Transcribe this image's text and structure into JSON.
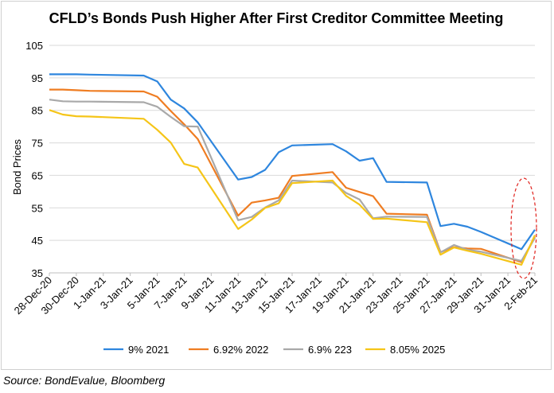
{
  "source": "Source: BondEvalue, Bloomberg",
  "chart_data": {
    "type": "line",
    "title": "CFLD’s Bonds Push Higher After First Creditor Committee Meeting",
    "xlabel": "",
    "ylabel": "Bond Prices",
    "ylim": [
      35,
      105
    ],
    "yticks": [
      35,
      45,
      55,
      65,
      75,
      85,
      95,
      105
    ],
    "grid": "horizontal",
    "legend_position": "bottom",
    "annotation": "dashed red ellipse highlighting the final rise",
    "annotation_color": "#e0201b",
    "x_tick_labels": [
      "28-Dec-20",
      "30-Dec-20",
      "1-Jan-21",
      "3-Jan-21",
      "5-Jan-21",
      "7-Jan-21",
      "9-Jan-21",
      "11-Jan-21",
      "13-Jan-21",
      "15-Jan-21",
      "17-Jan-21",
      "19-Jan-21",
      "21-Jan-21",
      "23-Jan-21",
      "25-Jan-21",
      "27-Jan-21",
      "29-Jan-21",
      "31-Jan-21",
      "2-Feb-21"
    ],
    "series": [
      {
        "name": "9% 2021",
        "color": "#2e86de",
        "x": [
          "28-Dec-20",
          "29-Dec-20",
          "30-Dec-20",
          "31-Dec-20",
          "4-Jan-21",
          "5-Jan-21",
          "6-Jan-21",
          "7-Jan-21",
          "8-Jan-21",
          "11-Jan-21",
          "12-Jan-21",
          "13-Jan-21",
          "14-Jan-21",
          "15-Jan-21",
          "18-Jan-21",
          "19-Jan-21",
          "20-Jan-21",
          "21-Jan-21",
          "22-Jan-21",
          "25-Jan-21",
          "26-Jan-21",
          "27-Jan-21",
          "28-Jan-21",
          "29-Jan-21",
          "1-Feb-21",
          "2-Feb-21"
        ],
        "values": [
          96.1,
          96.1,
          96.1,
          96.0,
          95.7,
          93.9,
          88.3,
          85.6,
          81.3,
          63.7,
          64.5,
          66.7,
          72.1,
          74.2,
          74.6,
          72.4,
          69.5,
          70.3,
          63.0,
          62.8,
          49.4,
          50.1,
          49.2,
          47.6,
          42.3,
          48.3
        ]
      },
      {
        "name": "6.92% 2022",
        "color": "#ef7d22",
        "x": [
          "28-Dec-20",
          "29-Dec-20",
          "30-Dec-20",
          "31-Dec-20",
          "4-Jan-21",
          "5-Jan-21",
          "6-Jan-21",
          "7-Jan-21",
          "8-Jan-21",
          "11-Jan-21",
          "12-Jan-21",
          "13-Jan-21",
          "14-Jan-21",
          "15-Jan-21",
          "18-Jan-21",
          "19-Jan-21",
          "20-Jan-21",
          "21-Jan-21",
          "22-Jan-21",
          "25-Jan-21",
          "26-Jan-21",
          "27-Jan-21",
          "28-Jan-21",
          "29-Jan-21",
          "1-Feb-21",
          "2-Feb-21"
        ],
        "values": [
          91.4,
          91.4,
          91.2,
          91.0,
          90.8,
          89.2,
          84.8,
          80.7,
          76.2,
          52.6,
          56.6,
          57.3,
          58.1,
          64.8,
          66.0,
          61.2,
          59.9,
          58.6,
          53.2,
          52.9,
          41.4,
          42.9,
          42.5,
          42.4,
          38.3,
          46.0
        ]
      },
      {
        "name": "6.9% 223",
        "color": "#a9a9a9",
        "x": [
          "28-Dec-20",
          "29-Dec-20",
          "30-Dec-20",
          "31-Dec-20",
          "4-Jan-21",
          "5-Jan-21",
          "6-Jan-21",
          "7-Jan-21",
          "8-Jan-21",
          "11-Jan-21",
          "12-Jan-21",
          "13-Jan-21",
          "14-Jan-21",
          "15-Jan-21",
          "18-Jan-21",
          "19-Jan-21",
          "20-Jan-21",
          "21-Jan-21",
          "22-Jan-21",
          "25-Jan-21",
          "26-Jan-21",
          "27-Jan-21",
          "28-Jan-21",
          "29-Jan-21",
          "1-Feb-21",
          "2-Feb-21"
        ],
        "values": [
          88.3,
          87.8,
          87.7,
          87.7,
          87.5,
          86.1,
          83.0,
          80.1,
          80.0,
          51.2,
          52.2,
          55.1,
          57.3,
          63.4,
          62.8,
          59.6,
          57.6,
          51.8,
          52.3,
          52.2,
          41.3,
          43.6,
          42.1,
          41.5,
          38.7,
          45.8
        ]
      },
      {
        "name": "8.05% 2025",
        "color": "#f5c518",
        "x": [
          "28-Dec-20",
          "29-Dec-20",
          "30-Dec-20",
          "31-Dec-20",
          "4-Jan-21",
          "5-Jan-21",
          "6-Jan-21",
          "7-Jan-21",
          "8-Jan-21",
          "11-Jan-21",
          "12-Jan-21",
          "13-Jan-21",
          "14-Jan-21",
          "15-Jan-21",
          "18-Jan-21",
          "19-Jan-21",
          "20-Jan-21",
          "21-Jan-21",
          "22-Jan-21",
          "25-Jan-21",
          "26-Jan-21",
          "27-Jan-21",
          "28-Jan-21",
          "29-Jan-21",
          "1-Feb-21",
          "2-Feb-21"
        ],
        "values": [
          85.1,
          83.7,
          83.2,
          83.1,
          82.4,
          79.0,
          75.1,
          68.5,
          67.4,
          48.5,
          51.4,
          55.0,
          56.4,
          62.6,
          63.4,
          58.7,
          56.0,
          51.6,
          51.7,
          50.6,
          40.6,
          42.8,
          41.8,
          40.9,
          37.5,
          46.6
        ]
      }
    ]
  }
}
